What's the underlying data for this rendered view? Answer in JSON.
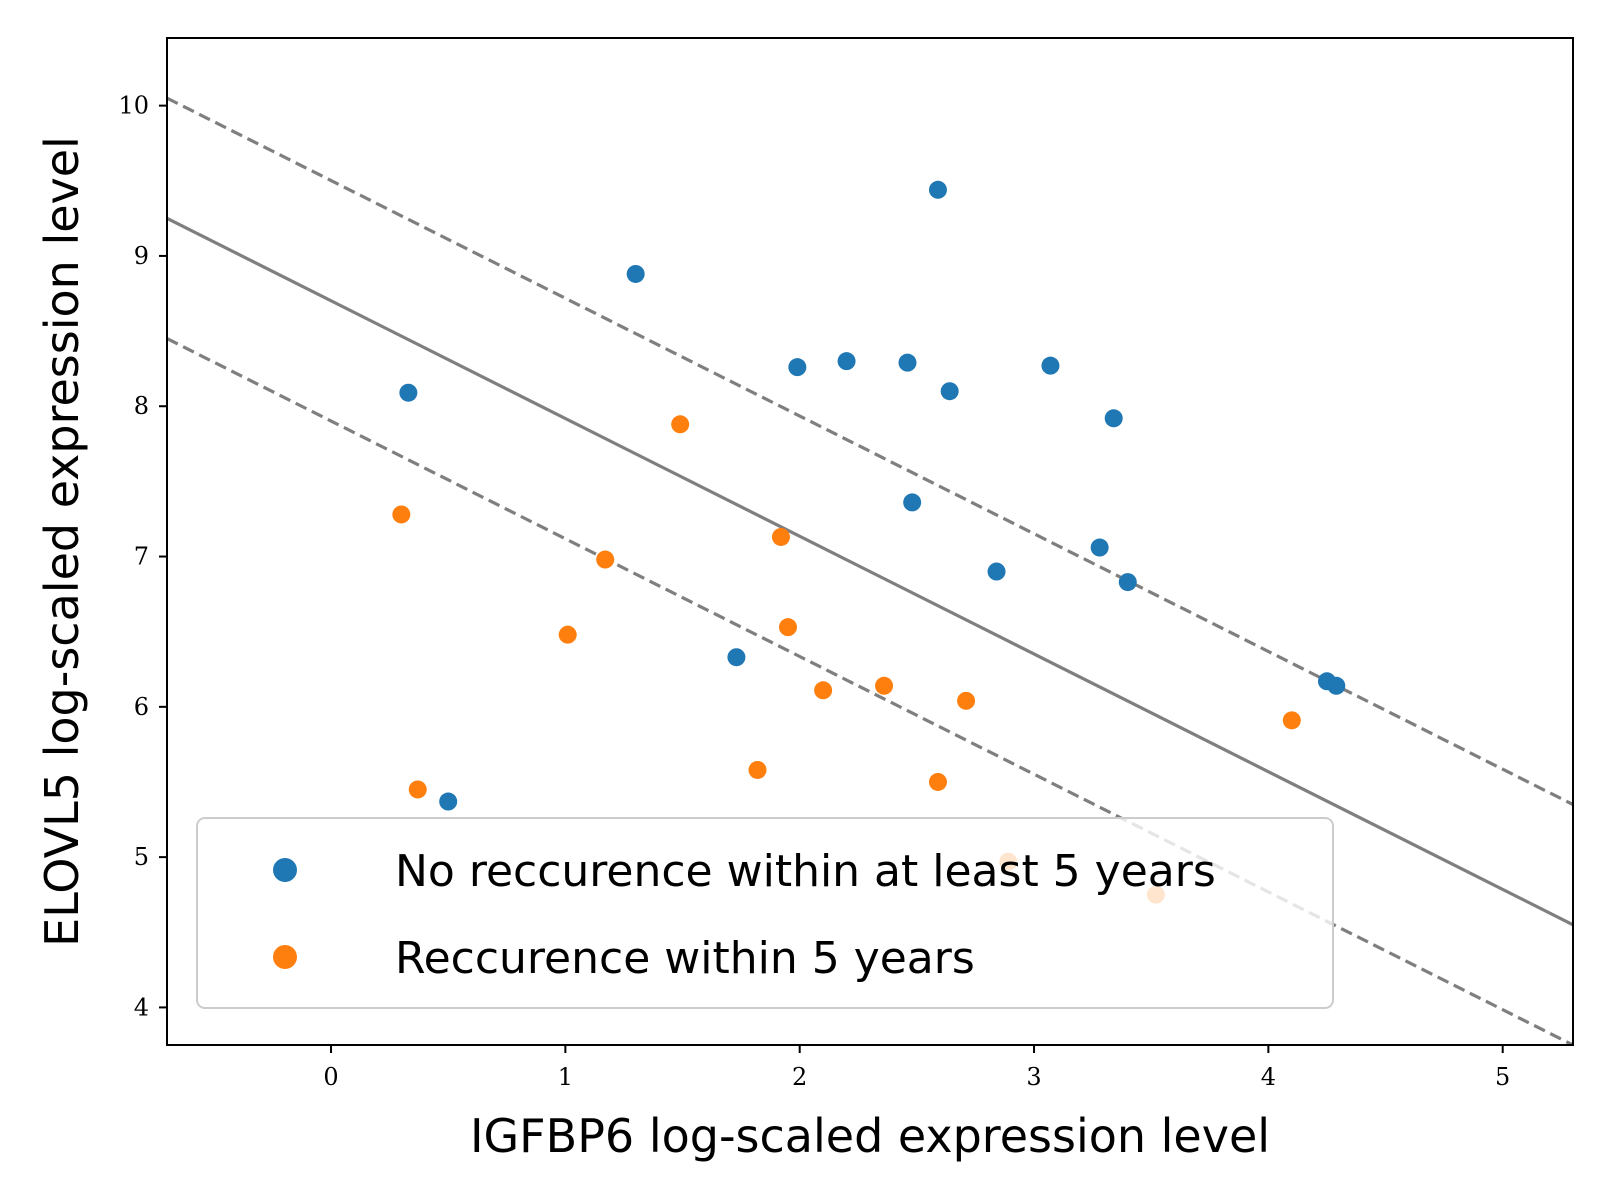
{
  "chart_data": {
    "type": "scatter",
    "title": "",
    "xlabel": "IGFBP6 log-scaled expression level",
    "ylabel": "ELOVL5 log-scaled expression level",
    "xlim": [
      -0.7,
      5.3
    ],
    "ylim": [
      3.75,
      10.45
    ],
    "x_ticks": [
      0,
      1,
      2,
      3,
      4,
      5
    ],
    "y_ticks": [
      4,
      5,
      6,
      7,
      8,
      9,
      10
    ],
    "grid": false,
    "legend_position": "lower-left",
    "series": [
      {
        "name": "No reccurence within at least 5 years",
        "color": "#1f77b4",
        "x": [
          2.59,
          1.3,
          1.99,
          2.2,
          2.46,
          3.07,
          0.33,
          2.64,
          3.34,
          2.48,
          3.28,
          2.84,
          3.4,
          1.73,
          4.25,
          4.29,
          0.5
        ],
        "y": [
          9.44,
          8.88,
          8.26,
          8.3,
          8.29,
          8.27,
          8.09,
          8.1,
          7.92,
          7.36,
          7.06,
          6.9,
          6.83,
          6.33,
          6.17,
          6.14,
          5.37
        ]
      },
      {
        "name": "Reccurence within 5 years",
        "color": "#ff7f0e",
        "x": [
          1.49,
          0.3,
          1.17,
          1.92,
          1.01,
          1.95,
          2.1,
          2.36,
          2.71,
          4.1,
          1.82,
          2.59,
          0.37,
          2.89,
          3.52
        ],
        "y": [
          7.88,
          7.28,
          6.98,
          7.13,
          6.48,
          6.53,
          6.11,
          6.14,
          6.04,
          5.91,
          5.58,
          5.5,
          5.45,
          4.97,
          4.75
        ]
      }
    ],
    "lines": [
      {
        "style": "solid",
        "color": "#7f7f7f",
        "x": [
          -0.7,
          5.3
        ],
        "y": [
          9.25,
          4.55
        ]
      },
      {
        "style": "dashed",
        "color": "#7f7f7f",
        "x": [
          -0.7,
          5.3
        ],
        "y": [
          10.05,
          5.35
        ]
      },
      {
        "style": "dashed",
        "color": "#7f7f7f",
        "x": [
          -0.7,
          5.3
        ],
        "y": [
          8.45,
          3.75
        ]
      }
    ]
  }
}
